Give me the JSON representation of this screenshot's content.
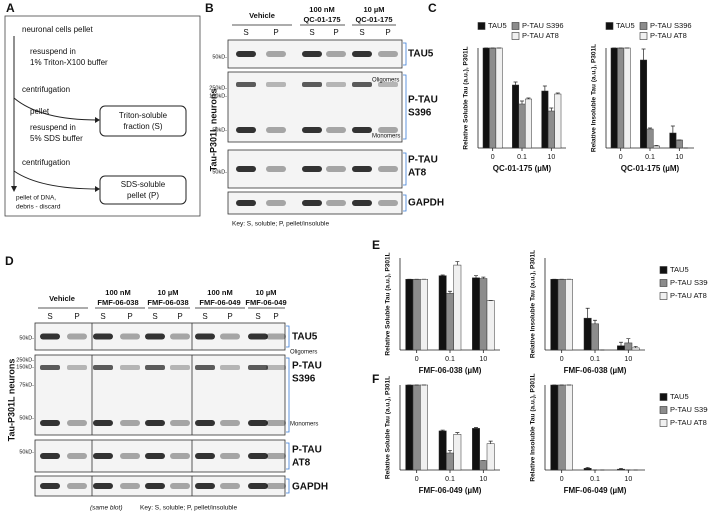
{
  "panel_a": {
    "letter": "A",
    "steps": [
      "neuronal cells pellet",
      "resuspend in",
      "1% Triton-X100 buffer",
      "centrifugation",
      "pellet",
      "resuspend in",
      "5% SDS buffer",
      "centrifugation",
      "pellet of DNA,",
      "debris - discard"
    ],
    "boxes": [
      [
        "Triton-soluble",
        "fraction (S)"
      ],
      [
        "SDS-soluble",
        "pellet (P)"
      ]
    ]
  },
  "panel_b": {
    "letter": "B",
    "side_label": "Tau-P301L neurons",
    "groups": [
      [
        "Vehicle"
      ],
      [
        "100 nM",
        "QC-01-175"
      ],
      [
        "10 µM",
        "QC-01-175"
      ]
    ],
    "lanes": [
      "S",
      "P",
      "S",
      "P",
      "S",
      "P"
    ],
    "blots": [
      [
        "TAU5"
      ],
      [
        "P-TAU",
        "S396"
      ],
      [
        "P-TAU",
        "AT8"
      ],
      [
        "GAPDH"
      ]
    ],
    "bands": [
      "Oligomers",
      "Monomers"
    ],
    "markers": [
      "50kD-",
      "250kD-",
      "150kD-",
      "50kD-",
      "50kD-"
    ],
    "key": "Key: S, soluble; P, pellet/insoluble"
  },
  "panel_c": {
    "letter": "C"
  },
  "panel_d": {
    "letter": "D",
    "side_label": "Tau-P301L neurons",
    "groups": [
      [
        "Vehicle"
      ],
      [
        "100 nM",
        "FMF-06-038"
      ],
      [
        "10 µM",
        "FMF-06-038"
      ],
      [
        "100 nM",
        "FMF-06-049"
      ],
      [
        "10 µM",
        "FMF-06-049"
      ]
    ],
    "lanes": [
      "S",
      "P",
      "S",
      "P",
      "S",
      "P",
      "S",
      "P",
      "S",
      "P"
    ],
    "blots": [
      [
        "TAU5"
      ],
      [
        "P-TAU",
        "S396"
      ],
      [
        "P-TAU",
        "AT8"
      ],
      [
        "GAPDH"
      ]
    ],
    "bands": [
      "Oligomers",
      "Monomers"
    ],
    "markers": [
      "50kD-",
      "250kD-",
      "150kD-",
      "75kD-",
      "50kD-",
      "50kD-"
    ],
    "note": "(same blot)",
    "key": "Key: S, soluble; P, pellet/insoluble"
  },
  "panel_e": {
    "letter": "E"
  },
  "panel_f": {
    "letter": "F"
  },
  "chart_data": [
    {
      "type": "bar",
      "y_title": "Relative Soluble Tau (a.u.), P301L",
      "x_title": "QC-01-175 (µM)",
      "categories": [
        "0",
        "0.1",
        "10"
      ],
      "ylim": [
        0,
        1
      ],
      "legend": "top",
      "series": [
        {
          "name": "TAU5",
          "color": "#111111",
          "values": [
            1,
            0.63,
            0.57
          ],
          "errors": [
            0,
            0.03,
            0.05
          ]
        },
        {
          "name": "P-TAU S396",
          "color": "#8c8c8c",
          "values": [
            1,
            0.44,
            0.37
          ],
          "errors": [
            0,
            0.03,
            0.03
          ]
        },
        {
          "name": "P-TAU AT8",
          "color": "#f0f0f0",
          "values": [
            1,
            0.49,
            0.54
          ],
          "errors": [
            0,
            0.01,
            0.01
          ]
        }
      ]
    },
    {
      "type": "bar",
      "y_title": "Relative Insoluble Tau (a.u.), P301L",
      "x_title": "QC-01-175 (µM)",
      "categories": [
        "0",
        "0.1",
        "10"
      ],
      "ylim": [
        0,
        1
      ],
      "legend": "top",
      "series": [
        {
          "name": "TAU5",
          "color": "#111111",
          "values": [
            1,
            0.88,
            0.15
          ],
          "errors": [
            0,
            0.11,
            0.07
          ]
        },
        {
          "name": "P-TAU S396",
          "color": "#8c8c8c",
          "values": [
            1,
            0.19,
            0.08
          ],
          "errors": [
            0,
            0.01,
            0
          ]
        },
        {
          "name": "P-TAU AT8",
          "color": "#f0f0f0",
          "values": [
            1,
            0.02,
            0
          ],
          "errors": [
            0,
            0.005,
            0
          ]
        }
      ]
    },
    {
      "type": "bar",
      "y_title": "Relative Soluble Tau (a.u.), P301L",
      "x_title": "FMF-06-038 (µM)",
      "categories": [
        "0",
        "0.1",
        "10"
      ],
      "ylim": [
        0,
        1.3
      ],
      "legend": "none",
      "series": [
        {
          "name": "TAU5",
          "color": "#111111",
          "values": [
            1,
            1.05,
            1.02
          ],
          "errors": [
            0,
            0.01,
            0.03
          ]
        },
        {
          "name": "P-TAU S396",
          "color": "#8c8c8c",
          "values": [
            1,
            0.8,
            1.01
          ],
          "errors": [
            0,
            0.03,
            0.02
          ]
        },
        {
          "name": "P-TAU AT8",
          "color": "#f0f0f0",
          "values": [
            1,
            1.2,
            0.7
          ],
          "errors": [
            0,
            0.05,
            0
          ]
        }
      ]
    },
    {
      "type": "bar",
      "y_title": "Relative Insoluble Tau (a.u.), P301L",
      "x_title": "FMF-06-038 (µM)",
      "categories": [
        "0",
        "0.1",
        "10"
      ],
      "ylim": [
        0,
        1.3
      ],
      "legend": "right",
      "series": [
        {
          "name": "TAU5",
          "color": "#111111",
          "values": [
            1,
            0.45,
            0.06
          ],
          "errors": [
            0,
            0.14,
            0.05
          ]
        },
        {
          "name": "P-TAU S396",
          "color": "#8c8c8c",
          "values": [
            1,
            0.37,
            0.1
          ],
          "errors": [
            0,
            0.05,
            0.06
          ]
        },
        {
          "name": "P-TAU AT8",
          "color": "#f0f0f0",
          "values": [
            1,
            0,
            0.03
          ],
          "errors": [
            0,
            0,
            0.02
          ]
        }
      ]
    },
    {
      "type": "bar",
      "y_title": "Relative Soluble Tau (a.u.), P301L",
      "x_title": "FMF-06-049 (µM)",
      "categories": [
        "0",
        "0.1",
        "10"
      ],
      "ylim": [
        0,
        1
      ],
      "legend": "none",
      "series": [
        {
          "name": "TAU5",
          "color": "#111111",
          "values": [
            1,
            0.46,
            0.49
          ],
          "errors": [
            0,
            0.01,
            0.01
          ]
        },
        {
          "name": "P-TAU S396",
          "color": "#8c8c8c",
          "values": [
            1,
            0.2,
            0.11
          ],
          "errors": [
            0,
            0.03,
            0
          ]
        },
        {
          "name": "P-TAU AT8",
          "color": "#f0f0f0",
          "values": [
            1,
            0.42,
            0.31
          ],
          "errors": [
            0,
            0.02,
            0.03
          ]
        }
      ]
    },
    {
      "type": "bar",
      "y_title": "Relative Insoluble Tau (a.u.), P301L",
      "x_title": "FMF-06-049 (µM)",
      "categories": [
        "0",
        "0.1",
        "10"
      ],
      "ylim": [
        0,
        1
      ],
      "legend": "right",
      "series": [
        {
          "name": "TAU5",
          "color": "#111111",
          "values": [
            1,
            0.02,
            0.01
          ],
          "errors": [
            0,
            0.01,
            0.01
          ]
        },
        {
          "name": "P-TAU S396",
          "color": "#8c8c8c",
          "values": [
            1,
            0,
            0
          ],
          "errors": [
            0,
            0,
            0
          ]
        },
        {
          "name": "P-TAU AT8",
          "color": "#f0f0f0",
          "values": [
            1,
            0,
            0
          ],
          "errors": [
            0,
            0,
            0
          ]
        }
      ]
    }
  ]
}
